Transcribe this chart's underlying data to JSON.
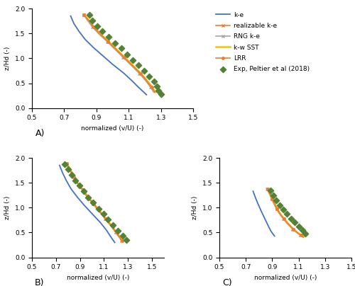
{
  "xlabel": "normalized (v/U) (-)",
  "ylabel": "z/Hd (-)",
  "xlim_A": [
    0.5,
    1.5
  ],
  "xlim_B": [
    0.5,
    1.6
  ],
  "xlim_C": [
    0.5,
    1.5
  ],
  "ylim": [
    0,
    2
  ],
  "yticks": [
    0,
    0.5,
    1.0,
    1.5,
    2.0
  ],
  "xticks_A": [
    0.5,
    0.7,
    0.9,
    1.1,
    1.3,
    1.5
  ],
  "xticks_B": [
    0.5,
    0.7,
    0.9,
    1.1,
    1.3,
    1.5
  ],
  "xticks_C": [
    0.5,
    0.7,
    0.9,
    1.1,
    1.3,
    1.5
  ],
  "colors": {
    "ke": "#4472c4",
    "rke": "#ed7d31",
    "rngke": "#a5a5a5",
    "kwsst": "#ffc000",
    "lrr": "#ed7d31",
    "exp": "#548235"
  },
  "legend_labels": [
    "k-e",
    "realizable k-e",
    "RNG k-e",
    "k-w SST",
    "LRR",
    "Exp, Peltier et al (2018)"
  ],
  "A_ke_x": [
    0.74,
    0.76,
    0.79,
    0.83,
    0.88,
    0.94,
    1.0,
    1.07,
    1.12,
    1.16,
    1.19,
    1.21
  ],
  "A_ke_z": [
    1.85,
    1.7,
    1.55,
    1.38,
    1.22,
    1.05,
    0.88,
    0.7,
    0.55,
    0.42,
    0.33,
    0.27
  ],
  "A_rke_x": [
    0.82,
    0.85,
    0.88,
    0.92,
    0.97,
    1.02,
    1.07,
    1.12,
    1.17,
    1.21,
    1.24,
    1.26
  ],
  "A_rke_z": [
    1.88,
    1.76,
    1.63,
    1.49,
    1.34,
    1.18,
    1.02,
    0.86,
    0.7,
    0.55,
    0.42,
    0.32
  ],
  "A_rngke_x": [
    0.82,
    0.845,
    0.875,
    0.915,
    0.965,
    1.015,
    1.065,
    1.115,
    1.165,
    1.205,
    1.235,
    1.255
  ],
  "A_rngke_z": [
    1.88,
    1.76,
    1.63,
    1.49,
    1.34,
    1.18,
    1.02,
    0.86,
    0.7,
    0.55,
    0.42,
    0.32
  ],
  "A_kwsst_x": [
    0.825,
    0.855,
    0.885,
    0.925,
    0.975,
    1.025,
    1.075,
    1.125,
    1.175,
    1.215,
    1.245,
    1.265
  ],
  "A_kwsst_z": [
    1.88,
    1.76,
    1.63,
    1.49,
    1.34,
    1.18,
    1.02,
    0.86,
    0.7,
    0.55,
    0.42,
    0.32
  ],
  "A_lrr_x": [
    0.82,
    0.852,
    0.882,
    0.922,
    0.972,
    1.022,
    1.072,
    1.122,
    1.172,
    1.212,
    1.242,
    1.262
  ],
  "A_lrr_z": [
    1.88,
    1.76,
    1.63,
    1.49,
    1.34,
    1.18,
    1.02,
    0.86,
    0.7,
    0.55,
    0.42,
    0.32
  ],
  "A_exp_x": [
    0.855,
    0.875,
    0.905,
    0.935,
    0.975,
    1.015,
    1.055,
    1.09,
    1.125,
    1.16,
    1.195,
    1.225,
    1.255,
    1.275,
    1.285,
    1.3
  ],
  "A_exp_z": [
    1.87,
    1.76,
    1.65,
    1.54,
    1.43,
    1.31,
    1.2,
    1.08,
    0.97,
    0.86,
    0.75,
    0.64,
    0.53,
    0.43,
    0.35,
    0.28
  ],
  "B_ke_x": [
    0.73,
    0.755,
    0.785,
    0.825,
    0.875,
    0.935,
    1.0,
    1.07,
    1.12,
    1.155,
    1.175,
    1.19
  ],
  "B_ke_z": [
    1.85,
    1.7,
    1.55,
    1.38,
    1.22,
    1.05,
    0.88,
    0.7,
    0.55,
    0.42,
    0.35,
    0.3
  ],
  "B_rke_x": [
    0.785,
    0.815,
    0.845,
    0.877,
    0.918,
    0.958,
    1.008,
    1.058,
    1.108,
    1.158,
    1.198,
    1.228,
    1.248
  ],
  "B_rke_z": [
    1.88,
    1.75,
    1.62,
    1.49,
    1.36,
    1.22,
    1.08,
    0.93,
    0.78,
    0.63,
    0.5,
    0.4,
    0.33
  ],
  "B_rngke_x": [
    0.787,
    0.817,
    0.847,
    0.879,
    0.92,
    0.96,
    1.01,
    1.06,
    1.11,
    1.16,
    1.2,
    1.23,
    1.25
  ],
  "B_rngke_z": [
    1.88,
    1.75,
    1.62,
    1.49,
    1.36,
    1.22,
    1.08,
    0.93,
    0.78,
    0.63,
    0.5,
    0.4,
    0.33
  ],
  "B_kwsst_x": [
    0.793,
    0.823,
    0.853,
    0.885,
    0.926,
    0.966,
    1.016,
    1.066,
    1.116,
    1.166,
    1.206,
    1.236,
    1.256
  ],
  "B_kwsst_z": [
    1.88,
    1.75,
    1.62,
    1.49,
    1.36,
    1.22,
    1.08,
    0.93,
    0.78,
    0.63,
    0.5,
    0.4,
    0.33
  ],
  "B_lrr_x": [
    0.79,
    0.82,
    0.85,
    0.882,
    0.923,
    0.963,
    1.013,
    1.063,
    1.113,
    1.163,
    1.203,
    1.233,
    1.253
  ],
  "B_lrr_z": [
    1.88,
    1.75,
    1.62,
    1.49,
    1.36,
    1.22,
    1.08,
    0.93,
    0.78,
    0.63,
    0.5,
    0.4,
    0.33
  ],
  "B_exp_x": [
    0.77,
    0.8,
    0.83,
    0.86,
    0.895,
    0.93,
    0.97,
    1.01,
    1.055,
    1.095,
    1.135,
    1.175,
    1.215,
    1.255,
    1.285
  ],
  "B_exp_z": [
    1.87,
    1.77,
    1.66,
    1.55,
    1.44,
    1.33,
    1.21,
    1.1,
    0.98,
    0.87,
    0.76,
    0.65,
    0.54,
    0.43,
    0.35
  ],
  "C_ke_x": [
    0.755,
    0.773,
    0.793,
    0.815,
    0.838,
    0.858,
    0.876,
    0.892,
    0.906,
    0.917
  ],
  "C_ke_z": [
    1.33,
    1.2,
    1.07,
    0.94,
    0.81,
    0.7,
    0.6,
    0.52,
    0.47,
    0.43
  ],
  "C_rke_x": [
    0.862,
    0.878,
    0.895,
    0.913,
    0.933,
    0.957,
    0.985,
    1.018,
    1.055,
    1.085,
    1.112,
    1.132
  ],
  "C_rke_z": [
    1.38,
    1.28,
    1.18,
    1.08,
    0.97,
    0.87,
    0.77,
    0.67,
    0.57,
    0.5,
    0.45,
    0.41
  ],
  "C_rngke_x": [
    0.864,
    0.88,
    0.897,
    0.915,
    0.935,
    0.959,
    0.987,
    1.02,
    1.057,
    1.087,
    1.114,
    1.134
  ],
  "C_rngke_z": [
    1.38,
    1.28,
    1.18,
    1.08,
    0.97,
    0.87,
    0.77,
    0.67,
    0.57,
    0.5,
    0.45,
    0.41
  ],
  "C_kwsst_x": [
    0.868,
    0.884,
    0.901,
    0.919,
    0.939,
    0.963,
    0.991,
    1.024,
    1.061,
    1.091,
    1.118,
    1.138
  ],
  "C_kwsst_z": [
    1.38,
    1.28,
    1.18,
    1.08,
    0.97,
    0.87,
    0.77,
    0.67,
    0.57,
    0.5,
    0.45,
    0.41
  ],
  "C_lrr_x": [
    0.866,
    0.882,
    0.899,
    0.917,
    0.937,
    0.961,
    0.989,
    1.022,
    1.059,
    1.089,
    1.116,
    1.136
  ],
  "C_lrr_z": [
    1.38,
    1.28,
    1.18,
    1.08,
    0.97,
    0.87,
    0.77,
    0.67,
    0.57,
    0.5,
    0.45,
    0.41
  ],
  "C_exp_x": [
    0.885,
    0.908,
    0.932,
    0.958,
    0.985,
    1.012,
    1.042,
    1.072,
    1.1,
    1.127,
    1.148
  ],
  "C_exp_z": [
    1.35,
    1.25,
    1.15,
    1.05,
    0.96,
    0.87,
    0.78,
    0.7,
    0.62,
    0.55,
    0.48
  ]
}
